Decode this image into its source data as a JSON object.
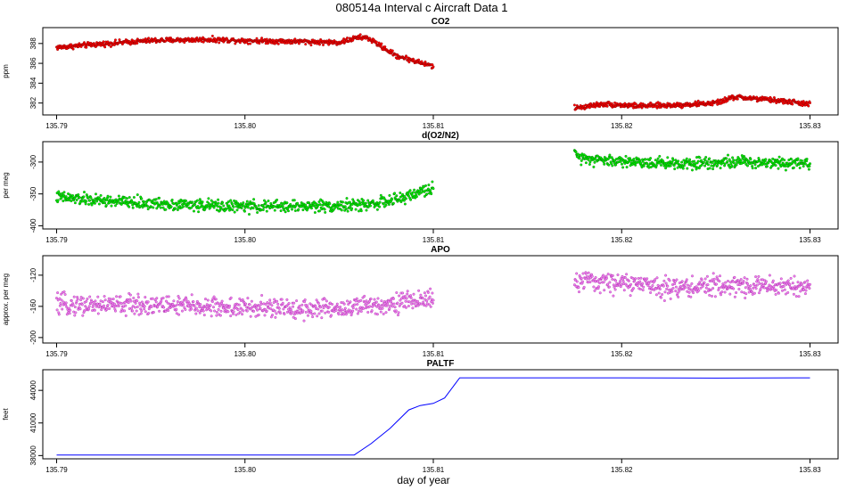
{
  "figure": {
    "title": "080514a   Interval c Aircraft Data 1",
    "xlabel": "day of year"
  },
  "chart_data": [
    {
      "type": "scatter",
      "title": "CO2",
      "ylabel": "ppm",
      "xlim": [
        135.79,
        135.83
      ],
      "ylim": [
        380.8,
        389.6
      ],
      "x_ticks": [
        "135.79",
        "135.80",
        "135.81",
        "135.82",
        "135.83"
      ],
      "y_ticks": [
        "382",
        "384",
        "386",
        "388"
      ],
      "colors": {
        "fill": "#ff0000",
        "edge": "#7a0000"
      },
      "series": [
        {
          "segments": [
            {
              "x": [
                135.79,
                135.792,
                135.795,
                135.798,
                135.8,
                135.803,
                135.805,
                135.806,
                135.8065,
                135.808,
                135.81
              ],
              "y": [
                387.6,
                387.9,
                388.3,
                388.4,
                388.3,
                388.2,
                388.1,
                388.6,
                388.6,
                386.8,
                385.7
              ]
            },
            {
              "x": [
                135.8175,
                135.819,
                135.821,
                135.823,
                135.825,
                135.826,
                135.828,
                135.83
              ],
              "y": [
                381.5,
                381.9,
                381.7,
                381.8,
                382.0,
                382.6,
                382.3,
                381.9
              ]
            }
          ]
        }
      ]
    },
    {
      "type": "scatter",
      "title": "d(O2/N2)",
      "ylabel": "per meg",
      "xlim": [
        135.79,
        135.83
      ],
      "ylim": [
        -405,
        -268
      ],
      "x_ticks": [
        "135.79",
        "135.80",
        "135.81",
        "135.82",
        "135.83"
      ],
      "y_ticks": [
        "-400",
        "-350",
        "-300"
      ],
      "colors": {
        "fill": "#00ee00",
        "edge": "#006400"
      },
      "series": [
        {
          "segments": [
            {
              "x": [
                135.79,
                135.792,
                135.795,
                135.798,
                135.8,
                135.803,
                135.806,
                135.808,
                135.81
              ],
              "y": [
                -355,
                -360,
                -365,
                -368,
                -370,
                -369,
                -368,
                -360,
                -340
              ]
            },
            {
              "x": [
                135.8175,
                135.819,
                135.821,
                135.823,
                135.825,
                135.827,
                135.83
              ],
              "y": [
                -290,
                -297,
                -300,
                -302,
                -300,
                -300,
                -301
              ]
            }
          ]
        }
      ]
    },
    {
      "type": "scatter",
      "title": "APO",
      "ylabel": "approx. per meg",
      "xlim": [
        135.79,
        135.83
      ],
      "ylim": [
        -207,
        -95
      ],
      "x_ticks": [
        "135.79",
        "135.80",
        "135.81",
        "135.82",
        "135.83"
      ],
      "y_ticks": [
        "-200",
        "-160",
        "-120"
      ],
      "colors": {
        "fill": "#ee82ee",
        "edge": "#a020a0"
      },
      "series": [
        {
          "segments": [
            {
              "x": [
                135.79,
                135.795,
                135.8,
                135.805,
                135.81
              ],
              "y": [
                -158,
                -158,
                -162,
                -163,
                -150
              ]
            },
            {
              "x": [
                135.8175,
                135.82,
                135.823,
                135.826,
                135.83
              ],
              "y": [
                -128,
                -130,
                -136,
                -133,
                -135
              ]
            }
          ]
        }
      ]
    },
    {
      "type": "line",
      "title": "PALTF",
      "ylabel": "feet",
      "xlim": [
        135.79,
        135.83
      ],
      "ylim": [
        37700,
        45900
      ],
      "x_ticks": [
        "135.79",
        "135.80",
        "135.81",
        "135.82",
        "135.83"
      ],
      "y_ticks": [
        "38000",
        "41000",
        "44000"
      ],
      "colors": {
        "line": "#0000ff"
      },
      "series": [
        {
          "x": [
            135.79,
            135.8058,
            135.8067,
            135.8077,
            135.8087,
            135.8093,
            135.81,
            135.8106,
            135.8114,
            135.815,
            135.82,
            135.825,
            135.83
          ],
          "y": [
            38050,
            38050,
            39100,
            40500,
            42200,
            42600,
            42800,
            43300,
            45150,
            45150,
            45150,
            45130,
            45150
          ]
        }
      ]
    }
  ]
}
